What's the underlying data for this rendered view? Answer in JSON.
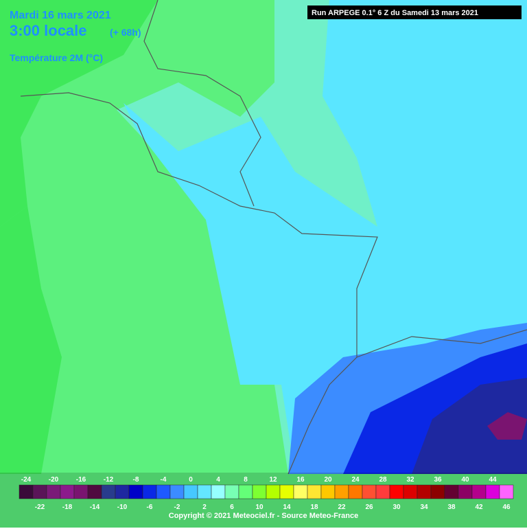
{
  "header": {
    "date": "Mardi 16 mars 2021",
    "time": "3:00 locale",
    "offset": "(+ 68h)",
    "parameter": "Température 2M (°C)",
    "run": "Run ARPEGE 0.1° 6 Z du Samedi 13 mars 2021"
  },
  "legend": [
    {
      "value": -24,
      "color": "#3a0a3a"
    },
    {
      "value": -22,
      "color": "#5a1458"
    },
    {
      "value": -20,
      "color": "#7a1a78"
    },
    {
      "value": -18,
      "color": "#8c1a8c"
    },
    {
      "value": -16,
      "color": "#7a1470"
    },
    {
      "value": -14,
      "color": "#500a40"
    },
    {
      "value": -12,
      "color": "#283c8c"
    },
    {
      "value": -10,
      "color": "#1e28a0"
    },
    {
      "value": -8,
      "color": "#0000c8"
    },
    {
      "value": -6,
      "color": "#0a28e6"
    },
    {
      "value": -4,
      "color": "#1e5aff"
    },
    {
      "value": -2,
      "color": "#3c8cff"
    },
    {
      "value": 0,
      "color": "#46c8ff"
    },
    {
      "value": 2,
      "color": "#64e6ff"
    },
    {
      "value": 4,
      "color": "#96ffff"
    },
    {
      "value": 6,
      "color": "#78ffb4"
    },
    {
      "value": 8,
      "color": "#64ff78"
    },
    {
      "value": 10,
      "color": "#7dff32"
    },
    {
      "value": 12,
      "color": "#b4ff00"
    },
    {
      "value": 14,
      "color": "#e6ff00"
    },
    {
      "value": 16,
      "color": "#ffff64"
    },
    {
      "value": 18,
      "color": "#ffe632"
    },
    {
      "value": 20,
      "color": "#ffc800"
    },
    {
      "value": 22,
      "color": "#ffa000"
    },
    {
      "value": 24,
      "color": "#ff7800"
    },
    {
      "value": 26,
      "color": "#ff5032"
    },
    {
      "value": 28,
      "color": "#ff3c3c"
    },
    {
      "value": 30,
      "color": "#ff0000"
    },
    {
      "value": 32,
      "color": "#dc0000"
    },
    {
      "value": 34,
      "color": "#b40000"
    },
    {
      "value": 36,
      "color": "#8c0000"
    },
    {
      "value": 38,
      "color": "#640032"
    },
    {
      "value": 40,
      "color": "#8c0064"
    },
    {
      "value": 42,
      "color": "#b4008c"
    },
    {
      "value": 44,
      "color": "#dc00dc"
    },
    {
      "value": 46,
      "color": "#ff64ff"
    }
  ],
  "footer": {
    "copyright": "Copyright © 2021 Meteociel.fr - Source Meteo-France"
  }
}
